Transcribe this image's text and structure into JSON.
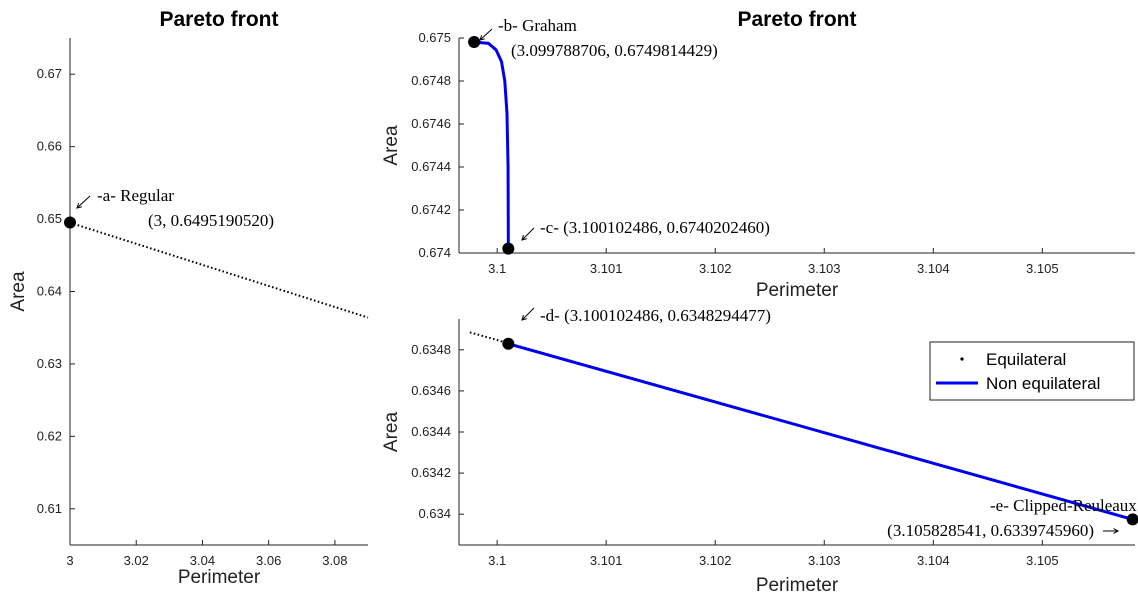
{
  "chart_data": [
    {
      "id": "left",
      "type": "line",
      "title": "Pareto front",
      "xlabel": "Perimeter",
      "ylabel": "Area",
      "xlim": [
        3,
        3.09
      ],
      "ylim": [
        0.605,
        0.675
      ],
      "xticks": [
        "3",
        "3.02",
        "3.04",
        "3.06",
        "3.08"
      ],
      "yticks": [
        "0.61",
        "0.62",
        "0.63",
        "0.64",
        "0.65",
        "0.66",
        "0.67"
      ],
      "series": [
        {
          "style": "dotted",
          "color": "#000000",
          "x": [
            3,
            3.09
          ],
          "y": [
            0.6495,
            0.6364
          ]
        }
      ],
      "points": [
        {
          "x": 3,
          "y": 0.649519052,
          "line1": "-a- Regular",
          "line2": "(3, 0.6495190520)"
        }
      ]
    },
    {
      "id": "top-right",
      "type": "line",
      "title": "Pareto front",
      "xlabel": "Perimeter",
      "ylabel": "Area",
      "xlim": [
        3.09965,
        3.10585
      ],
      "ylim": [
        0.674,
        0.675
      ],
      "xticks": [
        "3.1",
        "3.101",
        "3.102",
        "3.103",
        "3.104",
        "3.105"
      ],
      "yticks": [
        "0.674",
        "0.6742",
        "0.6744",
        "0.6746",
        "0.6748",
        "0.675"
      ],
      "series": [
        {
          "style": "solid",
          "color": "#0000ee",
          "x": [
            3.099788706,
            3.09992,
            3.09999,
            3.10004,
            3.10007,
            3.10009,
            3.1001,
            3.100102486
          ],
          "y": [
            0.6749814429,
            0.674975,
            0.674945,
            0.67489,
            0.6748,
            0.67465,
            0.6744,
            0.674020246
          ]
        }
      ],
      "points": [
        {
          "x": 3.099788706,
          "y": 0.6749814429,
          "line1": "-b- Graham",
          "line2": "(3.099788706, 0.6749814429)"
        },
        {
          "x": 3.100102486,
          "y": 0.674020246,
          "line1": "-c- (3.100102486, 0.6740202460)"
        }
      ]
    },
    {
      "id": "bottom-right",
      "type": "line",
      "title": "",
      "xlabel": "Perimeter",
      "ylabel": "Area",
      "xlim": [
        3.09965,
        3.10585
      ],
      "ylim": [
        0.63385,
        0.63495
      ],
      "xticks": [
        "3.1",
        "3.101",
        "3.102",
        "3.103",
        "3.104",
        "3.105"
      ],
      "yticks": [
        "0.634",
        "0.6342",
        "0.6344",
        "0.6346",
        "0.6348"
      ],
      "legend": {
        "position": "top-right",
        "entries": [
          "Equilateral",
          "Non equilateral"
        ]
      },
      "series": [
        {
          "name": "Equilateral",
          "style": "dotted",
          "color": "#000000",
          "x": [
            3.09975,
            3.105828541
          ],
          "y": [
            0.634885,
            0.633974596
          ]
        },
        {
          "name": "Non equilateral",
          "style": "solid",
          "color": "#0000ee",
          "x": [
            3.100102486,
            3.105828541
          ],
          "y": [
            0.6348294477,
            0.633974596
          ]
        }
      ],
      "points": [
        {
          "x": 3.100102486,
          "y": 0.6348294477,
          "line1": "-d- (3.100102486, 0.6348294477)"
        },
        {
          "x": 3.105828541,
          "y": 0.633974596,
          "line1": "-e- Clipped-Reuleaux",
          "line2": "(3.105828541, 0.6339745960)"
        }
      ]
    }
  ]
}
